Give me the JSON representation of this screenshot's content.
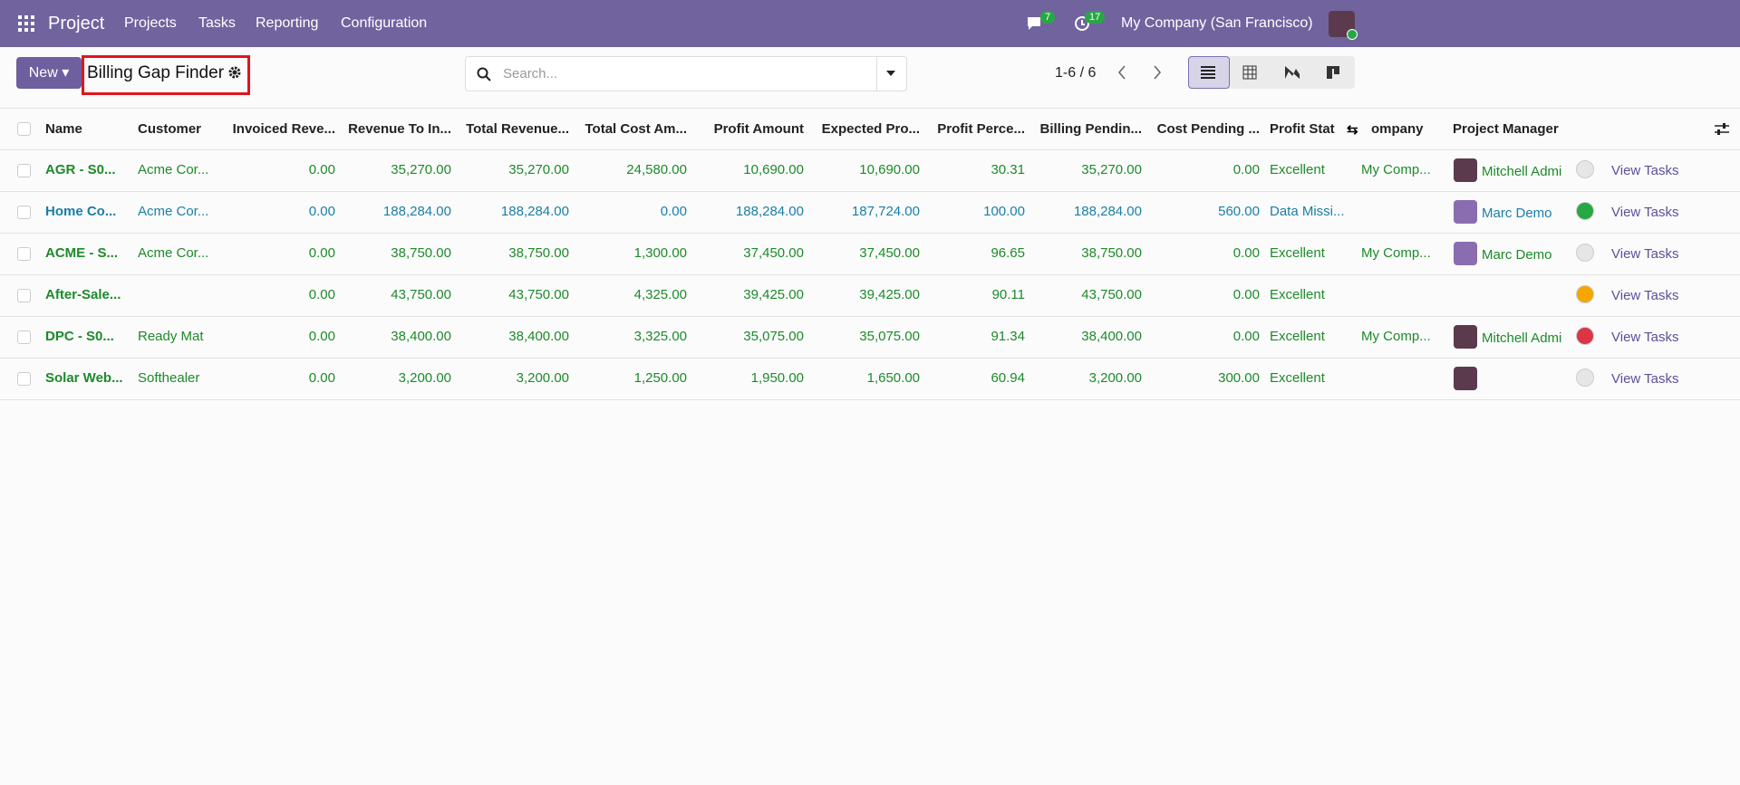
{
  "navbar": {
    "app": "Project",
    "menu": [
      "Projects",
      "Tasks",
      "Reporting",
      "Configuration"
    ],
    "messages_badge": "7",
    "activities_badge": "17",
    "company": "My Company (San Francisco)"
  },
  "control_panel": {
    "new_button": "New",
    "title": "Billing Gap Finder",
    "search_placeholder": "Search...",
    "pager": "1-6 / 6"
  },
  "table": {
    "columns": [
      "Name",
      "Customer",
      "Invoiced Reve...",
      "Revenue To In...",
      "Total Revenue...",
      "Total Cost Am...",
      "Profit Amount",
      "Expected Pro...",
      "Profit Perce...",
      "Billing Pendin...",
      "Cost Pending ...",
      "Profit Stat",
      "ompany",
      "Project Manager"
    ],
    "rows": [
      {
        "color": "#1d8a2a",
        "status_color": "#e6e6e6",
        "avatar_color": "#5b3a4e",
        "cells": [
          "AGR - S0...",
          "Acme Cor...",
          "0.00",
          "35,270.00",
          "35,270.00",
          "24,580.00",
          "10,690.00",
          "10,690.00",
          "30.31",
          "35,270.00",
          "0.00",
          "Excellent",
          "My Comp...",
          "Mitchell Admi"
        ],
        "action": "View Tasks"
      },
      {
        "color": "#1a7fa6",
        "status_color": "#28a745",
        "avatar_color": "#8a6db0",
        "cells": [
          "Home Co...",
          "Acme Cor...",
          "0.00",
          "188,284.00",
          "188,284.00",
          "0.00",
          "188,284.00",
          "187,724.00",
          "100.00",
          "188,284.00",
          "560.00",
          "Data Missi...",
          "",
          "Marc Demo"
        ],
        "action": "View Tasks"
      },
      {
        "color": "#1d8a2a",
        "status_color": "#e6e6e6",
        "avatar_color": "#8a6db0",
        "cells": [
          "ACME - S...",
          "Acme Cor...",
          "0.00",
          "38,750.00",
          "38,750.00",
          "1,300.00",
          "37,450.00",
          "37,450.00",
          "96.65",
          "38,750.00",
          "0.00",
          "Excellent",
          "My Comp...",
          "Marc Demo"
        ],
        "action": "View Tasks"
      },
      {
        "color": "#1d8a2a",
        "status_color": "#f5a700",
        "avatar_color": null,
        "cells": [
          "After-Sale...",
          "",
          "0.00",
          "43,750.00",
          "43,750.00",
          "4,325.00",
          "39,425.00",
          "39,425.00",
          "90.11",
          "43,750.00",
          "0.00",
          "Excellent",
          "",
          ""
        ],
        "action": "View Tasks"
      },
      {
        "color": "#1d8a2a",
        "status_color": "#dc3545",
        "avatar_color": "#5b3a4e",
        "cells": [
          "DPC - S0...",
          "Ready Mat",
          "0.00",
          "38,400.00",
          "38,400.00",
          "3,325.00",
          "35,075.00",
          "35,075.00",
          "91.34",
          "38,400.00",
          "0.00",
          "Excellent",
          "My Comp...",
          "Mitchell Admi"
        ],
        "action": "View Tasks"
      },
      {
        "color": "#1d8a2a",
        "status_color": "#e6e6e6",
        "avatar_color": "#5b3a4e",
        "cells": [
          "Solar Web...",
          "Softhealer",
          "0.00",
          "3,200.00",
          "3,200.00",
          "1,250.00",
          "1,950.00",
          "1,650.00",
          "60.94",
          "3,200.00",
          "300.00",
          "Excellent",
          "",
          ""
        ],
        "action": "View Tasks"
      }
    ]
  }
}
